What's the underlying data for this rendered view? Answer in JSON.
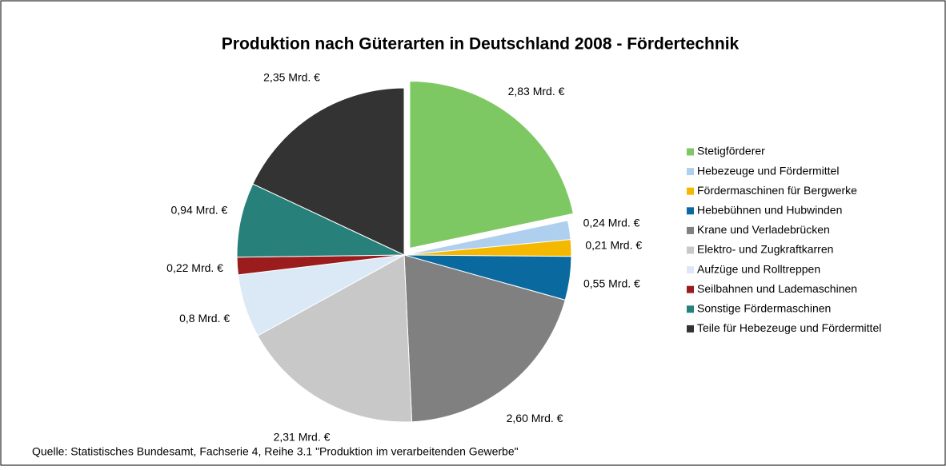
{
  "chart_data": {
    "type": "pie",
    "title": "Produktion nach Güterarten in Deutschland 2008 - Fördertechnik",
    "categories": [
      "Stetigförderer",
      "Hebezeuge und Fördermittel",
      "Fördermaschinen für Bergwerke",
      "Hebebühnen und Hubwinden",
      "Krane und Verladebrücken",
      "Elektro- und Zugkraftkarren",
      "Aufzüge und Rolltreppen",
      "Seilbahnen und Lademaschinen",
      "Sonstige Fördermaschinen",
      "Teile für Hebezeuge und Fördermittel"
    ],
    "values": [
      2.83,
      0.24,
      0.21,
      0.55,
      2.6,
      2.31,
      0.8,
      0.22,
      0.94,
      2.35
    ],
    "value_labels": [
      "2,83 Mrd. €",
      "0,24 Mrd. €",
      "0,21 Mrd. €",
      "0,55 Mrd. €",
      "2,60 Mrd. €",
      "2,31 Mrd. €",
      "0,8 Mrd. €",
      "0,22 Mrd. €",
      "0,94 Mrd. €",
      "2,35 Mrd. €"
    ],
    "colors": [
      "#7ec864",
      "#aecfee",
      "#f5b800",
      "#0a6aa0",
      "#808080",
      "#c8c8c8",
      "#dbe9f7",
      "#9b1c1c",
      "#27807a",
      "#333333"
    ],
    "exploded": [
      0
    ],
    "legend": "right",
    "source": "Quelle: Statistisches Bundesamt, Fachserie 4, Reihe 3.1 \"Produktion im verarbeitenden Gewerbe\""
  }
}
